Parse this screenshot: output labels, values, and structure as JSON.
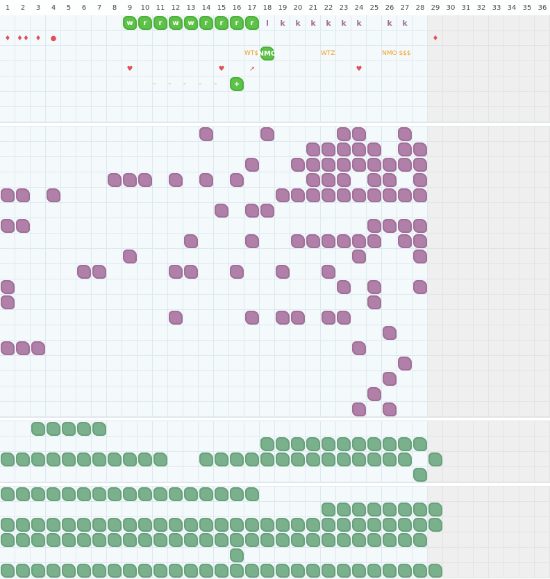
{
  "columns": [
    "1",
    "2",
    "3",
    "4",
    "5",
    "6",
    "7",
    "8",
    "9",
    "10",
    "11",
    "12",
    "13",
    "14",
    "15",
    "16",
    "17",
    "18",
    "19",
    "20",
    "21",
    "22",
    "23",
    "24",
    "25",
    "26",
    "27",
    "28",
    "29",
    "30",
    "31",
    "32",
    "33",
    "34",
    "35",
    "36"
  ],
  "active_columns": 28,
  "colors": {
    "purple": "#b080a8",
    "green_dark": "#7ab08c",
    "green_bright": "#5ec24a",
    "red": "#e0505a",
    "orange": "#f0a020"
  },
  "top_letters": [
    {
      "col": 9,
      "row": 1,
      "text": "w",
      "kind": "green"
    },
    {
      "col": 10,
      "row": 1,
      "text": "r",
      "kind": "green"
    },
    {
      "col": 11,
      "row": 1,
      "text": "r",
      "kind": "green"
    },
    {
      "col": 12,
      "row": 1,
      "text": "w",
      "kind": "green"
    },
    {
      "col": 13,
      "row": 1,
      "text": "w",
      "kind": "green"
    },
    {
      "col": 14,
      "row": 1,
      "text": "r",
      "kind": "green"
    },
    {
      "col": 15,
      "row": 1,
      "text": "r",
      "kind": "green"
    },
    {
      "col": 16,
      "row": 1,
      "text": "r",
      "kind": "green"
    },
    {
      "col": 17,
      "row": 1,
      "text": "r",
      "kind": "green"
    },
    {
      "col": 18,
      "row": 1,
      "text": "l",
      "kind": "k"
    },
    {
      "col": 19,
      "row": 1,
      "text": "k",
      "kind": "k"
    },
    {
      "col": 20,
      "row": 1,
      "text": "k",
      "kind": "k"
    },
    {
      "col": 21,
      "row": 1,
      "text": "k",
      "kind": "k"
    },
    {
      "col": 22,
      "row": 1,
      "text": "k",
      "kind": "k"
    },
    {
      "col": 23,
      "row": 1,
      "text": "k",
      "kind": "k"
    },
    {
      "col": 24,
      "row": 1,
      "text": "k",
      "kind": "k"
    },
    {
      "col": 26,
      "row": 1,
      "text": "k",
      "kind": "k"
    },
    {
      "col": 27,
      "row": 1,
      "text": "k",
      "kind": "k"
    },
    {
      "col": 1,
      "row": 2,
      "text": "♦",
      "kind": "red"
    },
    {
      "col": 2,
      "row": 2,
      "text": "♦♦",
      "kind": "red"
    },
    {
      "col": 3,
      "row": 2,
      "text": "♦",
      "kind": "red"
    },
    {
      "col": 4,
      "row": 2,
      "text": "●",
      "kind": "red"
    },
    {
      "col": 29,
      "row": 2,
      "text": "♦",
      "kind": "red"
    },
    {
      "col": 17,
      "row": 3,
      "text": "WT$",
      "kind": "orange"
    },
    {
      "col": 18,
      "row": 3,
      "text": "NMO",
      "kind": "green"
    },
    {
      "col": 22,
      "row": 3,
      "text": "WTZ",
      "kind": "orange"
    },
    {
      "col": 26,
      "row": 3,
      "text": "NMO $$$",
      "kind": "orange"
    },
    {
      "col": 9,
      "row": 4,
      "text": "♥",
      "kind": "red"
    },
    {
      "col": 15,
      "row": 4,
      "text": "♥",
      "kind": "red"
    },
    {
      "col": 17,
      "row": 4,
      "text": "↗",
      "kind": "red"
    },
    {
      "col": 24,
      "row": 4,
      "text": "♥",
      "kind": "red"
    },
    {
      "col": 11,
      "row": 5,
      "text": "–",
      "kind": "orange"
    },
    {
      "col": 12,
      "row": 5,
      "text": "–",
      "kind": "orange"
    },
    {
      "col": 13,
      "row": 5,
      "text": "–",
      "kind": "orange"
    },
    {
      "col": 14,
      "row": 5,
      "text": "–",
      "kind": "orange"
    },
    {
      "col": 15,
      "row": 5,
      "text": "–",
      "kind": "orange"
    },
    {
      "col": 16,
      "row": 5,
      "text": "+",
      "kind": "green"
    }
  ],
  "purple_cells": [
    [
      14,
      8
    ],
    [
      18,
      8
    ],
    [
      23,
      8
    ],
    [
      24,
      8
    ],
    [
      27,
      8
    ],
    [
      21,
      9
    ],
    [
      22,
      9
    ],
    [
      23,
      9
    ],
    [
      24,
      9
    ],
    [
      25,
      9
    ],
    [
      27,
      9
    ],
    [
      28,
      9
    ],
    [
      17,
      10
    ],
    [
      20,
      10
    ],
    [
      21,
      10
    ],
    [
      22,
      10
    ],
    [
      23,
      10
    ],
    [
      24,
      10
    ],
    [
      25,
      10
    ],
    [
      26,
      10
    ],
    [
      27,
      10
    ],
    [
      28,
      10
    ],
    [
      8,
      11
    ],
    [
      9,
      11
    ],
    [
      10,
      11
    ],
    [
      12,
      11
    ],
    [
      14,
      11
    ],
    [
      16,
      11
    ],
    [
      21,
      11
    ],
    [
      22,
      11
    ],
    [
      23,
      11
    ],
    [
      25,
      11
    ],
    [
      26,
      11
    ],
    [
      28,
      11
    ],
    [
      1,
      12
    ],
    [
      2,
      12
    ],
    [
      4,
      12
    ],
    [
      19,
      12
    ],
    [
      20,
      12
    ],
    [
      21,
      12
    ],
    [
      22,
      12
    ],
    [
      23,
      12
    ],
    [
      24,
      12
    ],
    [
      25,
      12
    ],
    [
      26,
      12
    ],
    [
      27,
      12
    ],
    [
      28,
      12
    ],
    [
      15,
      13
    ],
    [
      17,
      13
    ],
    [
      18,
      13
    ],
    [
      1,
      14
    ],
    [
      2,
      14
    ],
    [
      25,
      14
    ],
    [
      26,
      14
    ],
    [
      27,
      14
    ],
    [
      28,
      14
    ],
    [
      13,
      15
    ],
    [
      17,
      15
    ],
    [
      20,
      15
    ],
    [
      21,
      15
    ],
    [
      22,
      15
    ],
    [
      23,
      15
    ],
    [
      24,
      15
    ],
    [
      25,
      15
    ],
    [
      27,
      15
    ],
    [
      28,
      15
    ],
    [
      9,
      16
    ],
    [
      24,
      16
    ],
    [
      28,
      16
    ],
    [
      6,
      17
    ],
    [
      7,
      17
    ],
    [
      12,
      17
    ],
    [
      13,
      17
    ],
    [
      16,
      17
    ],
    [
      19,
      17
    ],
    [
      22,
      17
    ],
    [
      1,
      18
    ],
    [
      23,
      18
    ],
    [
      25,
      18
    ],
    [
      28,
      18
    ],
    [
      1,
      19
    ],
    [
      25,
      19
    ],
    [
      12,
      20
    ],
    [
      17,
      20
    ],
    [
      19,
      20
    ],
    [
      20,
      20
    ],
    [
      22,
      20
    ],
    [
      23,
      20
    ],
    [
      26,
      21
    ],
    [
      1,
      22
    ],
    [
      2,
      22
    ],
    [
      3,
      22
    ],
    [
      24,
      22
    ],
    [
      27,
      23
    ],
    [
      26,
      24
    ],
    [
      25,
      25
    ],
    [
      24,
      26
    ],
    [
      26,
      26
    ]
  ],
  "green_rows": [
    {
      "row": 28,
      "cols": [
        3,
        4,
        5,
        6,
        7
      ]
    },
    {
      "row": 29,
      "cols": [
        18,
        19,
        20,
        21,
        22,
        23,
        24,
        25,
        26,
        27,
        28
      ]
    },
    {
      "row": 30,
      "cols": [
        1,
        2,
        3,
        4,
        5,
        6,
        7,
        8,
        9,
        10,
        11,
        14,
        15,
        16,
        17,
        18,
        19,
        20,
        21,
        22,
        23,
        24,
        25,
        26,
        27,
        29
      ]
    },
    {
      "row": 31,
      "cols": [
        28
      ]
    },
    {
      "row": 33,
      "cols": [
        1,
        2,
        3,
        4,
        5,
        6,
        7,
        8,
        9,
        10,
        11,
        12,
        13,
        14,
        15,
        16,
        17
      ]
    },
    {
      "row": 34,
      "cols": [
        22,
        23,
        24,
        25,
        26,
        27,
        28,
        29
      ]
    },
    {
      "row": 35,
      "cols": [
        1,
        2,
        3,
        4,
        5,
        6,
        7,
        8,
        9,
        10,
        11,
        12,
        13,
        14,
        15,
        16,
        17,
        18,
        19,
        20,
        21,
        22,
        23,
        24,
        25,
        26,
        27,
        28,
        29
      ]
    },
    {
      "row": 36,
      "cols": [
        1,
        2,
        3,
        4,
        5,
        6,
        7,
        8,
        9,
        10,
        11,
        12,
        13,
        14,
        15,
        16,
        17,
        18,
        19,
        20,
        21,
        22,
        23,
        24,
        25,
        26,
        27,
        28
      ]
    },
    {
      "row": 37,
      "cols": [
        16
      ]
    },
    {
      "row": 38,
      "cols": [
        1,
        2,
        3,
        4,
        5,
        6,
        7,
        8,
        9,
        10,
        11,
        12,
        13,
        14,
        15,
        16,
        17,
        18,
        19,
        20,
        21,
        22,
        23,
        24,
        25,
        26,
        27,
        28,
        29
      ]
    }
  ]
}
